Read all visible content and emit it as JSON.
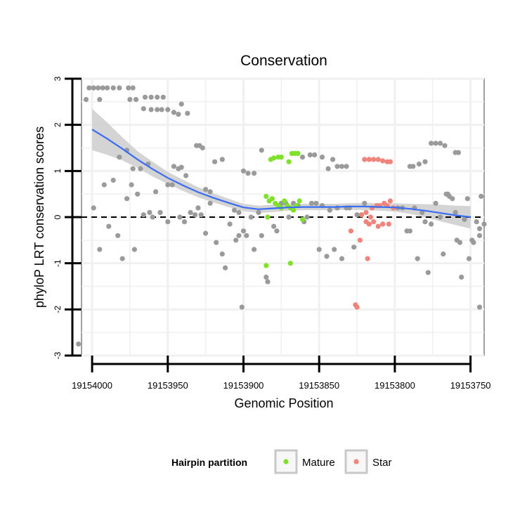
{
  "chart_data": {
    "type": "scatter",
    "title": "Conservation",
    "xlabel": "Genomic Position",
    "ylabel": "phyloP LRT conservation scores",
    "x_reversed": true,
    "xlim": [
      19154007,
      19153741
    ],
    "ylim": [
      -3,
      3
    ],
    "x_ticks": [
      19154000,
      19153950,
      19153900,
      19153850,
      19153800,
      19153750
    ],
    "x_tick_labels": [
      "19154000",
      "19153950",
      "19153900",
      "19153850",
      "19153800",
      "19153750"
    ],
    "y_ticks": [
      -3,
      -2,
      -1,
      0,
      1,
      2,
      3
    ],
    "y_tick_labels": [
      "-3",
      "-2",
      "-1",
      "0",
      "1",
      "2",
      "3"
    ],
    "reference_line": {
      "y": 0,
      "style": "dashed"
    },
    "legend": {
      "title": "Hairpin partition",
      "position": "bottom",
      "entries": [
        {
          "label": "Mature",
          "color": "#7fe12a"
        },
        {
          "label": "Star",
          "color": "#f0837a"
        }
      ]
    },
    "colors": {
      "other": "#9a9a9a",
      "mature": "#7fe12a",
      "star": "#f0837a",
      "smooth": "#3a6cf4",
      "ribbon": "#cfcfcf"
    },
    "smooth": {
      "x": [
        19154000,
        19153990,
        19153980,
        19153970,
        19153960,
        19153950,
        19153940,
        19153930,
        19153920,
        19153910,
        19153900,
        19153890,
        19153880,
        19153870,
        19153860,
        19153850,
        19153840,
        19153830,
        19153820,
        19153810,
        19153800,
        19153790,
        19153780,
        19153770,
        19153760,
        19153750
      ],
      "y": [
        1.9,
        1.7,
        1.48,
        1.25,
        1.04,
        0.85,
        0.69,
        0.54,
        0.42,
        0.31,
        0.21,
        0.17,
        0.19,
        0.21,
        0.22,
        0.22,
        0.22,
        0.23,
        0.23,
        0.22,
        0.21,
        0.18,
        0.14,
        0.09,
        0.04,
        0.0
      ],
      "lower": [
        1.45,
        1.35,
        1.23,
        1.07,
        0.88,
        0.72,
        0.57,
        0.43,
        0.32,
        0.22,
        0.13,
        0.09,
        0.11,
        0.14,
        0.15,
        0.15,
        0.15,
        0.16,
        0.15,
        0.14,
        0.12,
        0.07,
        0.0,
        -0.09,
        -0.17,
        -0.25
      ],
      "upper": [
        2.35,
        2.05,
        1.73,
        1.43,
        1.2,
        0.98,
        0.81,
        0.65,
        0.52,
        0.4,
        0.29,
        0.25,
        0.27,
        0.28,
        0.29,
        0.29,
        0.29,
        0.3,
        0.31,
        0.3,
        0.3,
        0.29,
        0.28,
        0.27,
        0.25,
        0.24
      ]
    },
    "series": [
      {
        "name": "Other",
        "points": [
          [
            19154002,
            2.8
          ],
          [
            19153999,
            2.8
          ],
          [
            19153996,
            2.8
          ],
          [
            19153993,
            2.8
          ],
          [
            19153990,
            2.8
          ],
          [
            19153986,
            2.8
          ],
          [
            19153982,
            2.8
          ],
          [
            19153976,
            2.8
          ],
          [
            19153973,
            2.8
          ],
          [
            19154004,
            2.55
          ],
          [
            19153995,
            2.55
          ],
          [
            19153975,
            2.55
          ],
          [
            19153971,
            2.55
          ],
          [
            19153965,
            2.6
          ],
          [
            19153961,
            2.6
          ],
          [
            19153957,
            2.6
          ],
          [
            19153953,
            2.6
          ],
          [
            19153966,
            2.35
          ],
          [
            19153961,
            2.33
          ],
          [
            19153957,
            2.33
          ],
          [
            19153954,
            2.33
          ],
          [
            19153950,
            2.33
          ],
          [
            19153946,
            2.27
          ],
          [
            19153943,
            2.23
          ],
          [
            19153941,
            2.45
          ],
          [
            19153937,
            2.25
          ],
          [
            19153982,
            1.3
          ],
          [
            19153977,
            1.45
          ],
          [
            19153974,
            0.7
          ],
          [
            19153968,
            1.05
          ],
          [
            19153963,
            1.15
          ],
          [
            19153958,
            0.55
          ],
          [
            19153950,
            0.7
          ],
          [
            19153946,
            1.1
          ],
          [
            19153943,
            1.05
          ],
          [
            19153941,
            1.08
          ],
          [
            19153938,
            0.9
          ],
          [
            19153931,
            1.55
          ],
          [
            19153929,
            1.55
          ],
          [
            19153927,
            1.5
          ],
          [
            19153925,
            0.6
          ],
          [
            19153922,
            0.55
          ],
          [
            19153919,
            1.2
          ],
          [
            19153914,
            1.25
          ],
          [
            19153999,
            0.2
          ],
          [
            19153995,
            -0.7
          ],
          [
            19153992,
            0.7
          ],
          [
            19153989,
            -0.2
          ],
          [
            19153986,
            0.8
          ],
          [
            19153983,
            -0.4
          ],
          [
            19153980,
            -0.9
          ],
          [
            19153977,
            0.4
          ],
          [
            19153973,
            1.05
          ],
          [
            19153972,
            -0.7
          ],
          [
            19153970,
            0.5
          ],
          [
            19153966,
            0.05
          ],
          [
            19153962,
            0.1
          ],
          [
            19153960,
            0.0
          ],
          [
            19153955,
            0.1
          ],
          [
            19153950,
            -0.1
          ],
          [
            19153947,
            0.7
          ],
          [
            19153942,
            0.0
          ],
          [
            19153939,
            -0.1
          ],
          [
            19153935,
            0.1
          ],
          [
            19153932,
            0.05
          ],
          [
            19153930,
            0.2
          ],
          [
            19153928,
            0.05
          ],
          [
            19153925,
            -0.35
          ],
          [
            19153922,
            0.3
          ],
          [
            19153918,
            -0.55
          ],
          [
            19153914,
            -0.8
          ],
          [
            19153912,
            -1.1
          ],
          [
            19153909,
            -0.15
          ],
          [
            19153900,
            1.0
          ],
          [
            19153897,
            0.95
          ],
          [
            19153893,
            0.95
          ],
          [
            19153888,
            1.45
          ],
          [
            19153906,
            0.15
          ],
          [
            19153903,
            0.1
          ],
          [
            19153900,
            -0.3
          ],
          [
            19153898,
            -0.4
          ],
          [
            19153895,
            0.0
          ],
          [
            19153893,
            -0.7
          ],
          [
            19153890,
            0.1
          ],
          [
            19153888,
            -0.4
          ],
          [
            19153885,
            -1.3
          ],
          [
            19153884,
            -1.4
          ],
          [
            19153880,
            -0.2
          ],
          [
            19153878,
            -0.3
          ],
          [
            19153875,
            0.3
          ],
          [
            19153872,
            0.3
          ],
          [
            19153870,
            0.0
          ],
          [
            19153867,
            0.3
          ],
          [
            19153864,
            0.25
          ],
          [
            19153905,
            -0.5
          ],
          [
            19153903,
            -0.4
          ],
          [
            19153901,
            -1.95
          ],
          [
            19153861,
            1.3
          ],
          [
            19153856,
            1.35
          ],
          [
            19153853,
            1.35
          ],
          [
            19153848,
            1.3
          ],
          [
            19153844,
            1.05
          ],
          [
            19153841,
            1.25
          ],
          [
            19153838,
            1.1
          ],
          [
            19153835,
            1.1
          ],
          [
            19153832,
            1.1
          ],
          [
            19153860,
            -0.1
          ],
          [
            19153858,
            0.0
          ],
          [
            19153855,
            0.3
          ],
          [
            19153852,
            0.3
          ],
          [
            19153850,
            -0.7
          ],
          [
            19153848,
            0.25
          ],
          [
            19153845,
            -0.85
          ],
          [
            19153843,
            0.15
          ],
          [
            19153840,
            -0.7
          ],
          [
            19153838,
            0.2
          ],
          [
            19153835,
            -0.9
          ],
          [
            19153832,
            0.2
          ],
          [
            19153830,
            0.2
          ],
          [
            19153827,
            -0.65
          ],
          [
            19153825,
            0.05
          ],
          [
            19153822,
            0.05
          ],
          [
            19153820,
            0.3
          ],
          [
            19153790,
            1.1
          ],
          [
            19153788,
            1.1
          ],
          [
            19153784,
            1.15
          ],
          [
            19153780,
            1.2
          ],
          [
            19153776,
            1.6
          ],
          [
            19153773,
            1.6
          ],
          [
            19153770,
            1.6
          ],
          [
            19153767,
            1.55
          ],
          [
            19153760,
            1.4
          ],
          [
            19153758,
            1.4
          ],
          [
            19153798,
            0.2
          ],
          [
            19153795,
            0.2
          ],
          [
            19153792,
            -0.3
          ],
          [
            19153790,
            -0.3
          ],
          [
            19153787,
            0.2
          ],
          [
            19153785,
            -0.9
          ],
          [
            19153782,
            0.1
          ],
          [
            19153780,
            -0.1
          ],
          [
            19153778,
            -1.2
          ],
          [
            19153776,
            -0.15
          ],
          [
            19153773,
            0.3
          ],
          [
            19153770,
            0.0
          ],
          [
            19153768,
            -0.8
          ],
          [
            19153766,
            0.5
          ],
          [
            19153764,
            0.45
          ],
          [
            19153760,
            0.1
          ],
          [
            19153757,
            -0.55
          ],
          [
            19153754,
            -0.05
          ],
          [
            19153752,
            0.4
          ],
          [
            19153749,
            -0.5
          ],
          [
            19153746,
            -0.1
          ],
          [
            19153744,
            -0.4
          ],
          [
            19153741,
            -0.15
          ],
          [
            19153765,
            0.5
          ],
          [
            19153762,
            0.4
          ],
          [
            19153759,
            -0.5
          ],
          [
            19153756,
            -1.3
          ],
          [
            19153751,
            -0.9
          ],
          [
            19153748,
            -0.55
          ],
          [
            19153744,
            -0.25
          ],
          [
            19153744,
            -1.95
          ],
          [
            19153743,
            0.45
          ],
          [
            19154009,
            -2.75
          ]
        ]
      },
      {
        "name": "Mature",
        "points": [
          [
            19153885,
            0.45
          ],
          [
            19153883,
            0.35
          ],
          [
            19153881,
            0.4
          ],
          [
            19153879,
            0.3
          ],
          [
            19153877,
            0.25
          ],
          [
            19153875,
            0.2
          ],
          [
            19153873,
            0.35
          ],
          [
            19153871,
            0.25
          ],
          [
            19153869,
            0.2
          ],
          [
            19153867,
            0.15
          ],
          [
            19153865,
            0.25
          ],
          [
            19153863,
            0.35
          ],
          [
            19153861,
            -0.05
          ],
          [
            19153882,
            1.25
          ],
          [
            19153880,
            1.28
          ],
          [
            19153877,
            1.3
          ],
          [
            19153875,
            1.3
          ],
          [
            19153870,
            1.2
          ],
          [
            19153868,
            1.38
          ],
          [
            19153866,
            1.38
          ],
          [
            19153864,
            1.38
          ],
          [
            19153884,
            -0.0
          ],
          [
            19153885,
            -1.05
          ],
          [
            19153869,
            -1.0
          ]
        ]
      },
      {
        "name": "Star",
        "points": [
          [
            19153820,
            1.25
          ],
          [
            19153817,
            1.25
          ],
          [
            19153814,
            1.25
          ],
          [
            19153811,
            1.25
          ],
          [
            19153808,
            1.22
          ],
          [
            19153805,
            1.2
          ],
          [
            19153803,
            1.2
          ],
          [
            19153822,
            0.05
          ],
          [
            19153819,
            0.1
          ],
          [
            19153816,
            0.0
          ],
          [
            19153815,
            0.2
          ],
          [
            19153812,
            0.25
          ],
          [
            19153810,
            0.25
          ],
          [
            19153807,
            0.3
          ],
          [
            19153805,
            0.25
          ],
          [
            19153803,
            0.35
          ],
          [
            19153801,
            0.2
          ],
          [
            19153819,
            -0.1
          ],
          [
            19153817,
            -0.15
          ],
          [
            19153814,
            -0.1
          ],
          [
            19153811,
            -0.2
          ],
          [
            19153808,
            -0.15
          ],
          [
            19153804,
            -0.15
          ],
          [
            19153829,
            -0.3
          ],
          [
            19153823,
            -0.5
          ],
          [
            19153818,
            -0.9
          ],
          [
            19153826,
            -1.9
          ],
          [
            19153825,
            -1.95
          ]
        ]
      }
    ]
  }
}
